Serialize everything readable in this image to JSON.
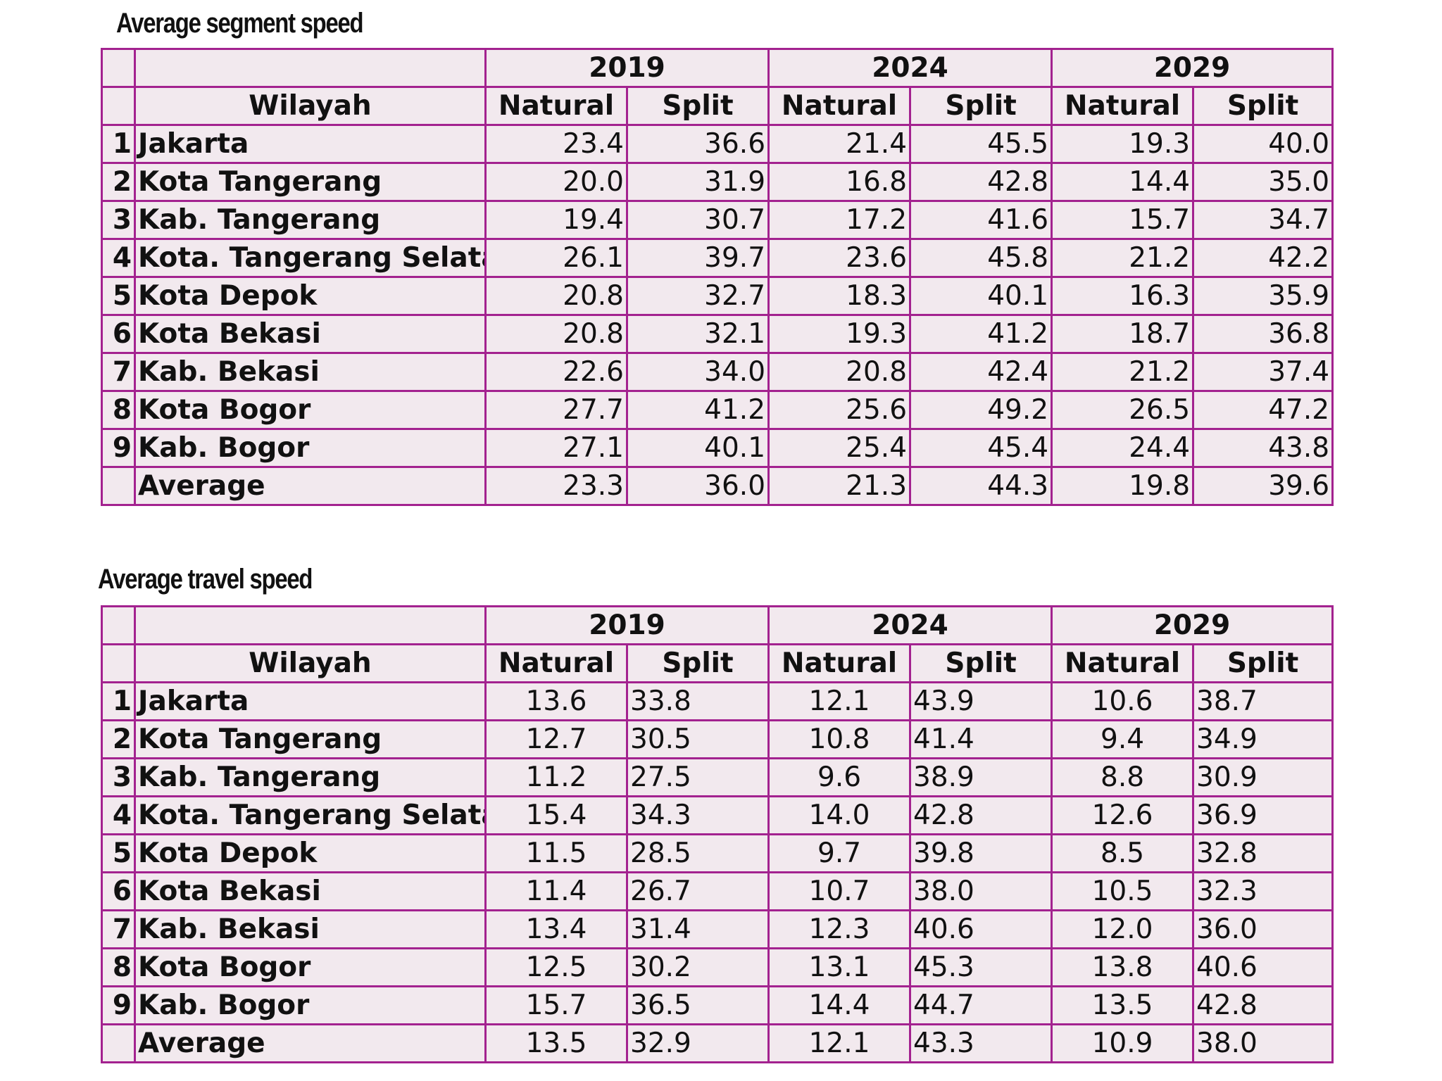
{
  "tables": [
    {
      "title": "Average segment speed",
      "years": [
        "2019",
        "2024",
        "2029"
      ],
      "region_header": "Wilayah",
      "sub_headers": [
        "Natural",
        "Split",
        "Natural",
        "Split",
        "Natural",
        "Split"
      ],
      "rows": [
        {
          "num": "1",
          "name": "Jakarta",
          "values": [
            "23.4",
            "36.6",
            "21.4",
            "45.5",
            "19.3",
            "40.0"
          ]
        },
        {
          "num": "2",
          "name": "Kota Tangerang",
          "values": [
            "20.0",
            "31.9",
            "16.8",
            "42.8",
            "14.4",
            "35.0"
          ]
        },
        {
          "num": "3",
          "name": "Kab. Tangerang",
          "values": [
            "19.4",
            "30.7",
            "17.2",
            "41.6",
            "15.7",
            "34.7"
          ]
        },
        {
          "num": "4",
          "name": "Kota. Tangerang Selatan",
          "values": [
            "26.1",
            "39.7",
            "23.6",
            "45.8",
            "21.2",
            "42.2"
          ]
        },
        {
          "num": "5",
          "name": "Kota Depok",
          "values": [
            "20.8",
            "32.7",
            "18.3",
            "40.1",
            "16.3",
            "35.9"
          ]
        },
        {
          "num": "6",
          "name": "Kota Bekasi",
          "values": [
            "20.8",
            "32.1",
            "19.3",
            "41.2",
            "18.7",
            "36.8"
          ]
        },
        {
          "num": "7",
          "name": "Kab. Bekasi",
          "values": [
            "22.6",
            "34.0",
            "20.8",
            "42.4",
            "21.2",
            "37.4"
          ]
        },
        {
          "num": "8",
          "name": "Kota Bogor",
          "values": [
            "27.7",
            "41.2",
            "25.6",
            "49.2",
            "26.5",
            "47.2"
          ]
        },
        {
          "num": "9",
          "name": "Kab. Bogor",
          "values": [
            "27.1",
            "40.1",
            "25.4",
            "45.4",
            "24.4",
            "43.8"
          ]
        },
        {
          "num": "",
          "name": "Average",
          "values": [
            "23.3",
            "36.0",
            "21.3",
            "44.3",
            "19.8",
            "39.6"
          ]
        }
      ]
    },
    {
      "title": "Average travel speed",
      "years": [
        "2019",
        "2024",
        "2029"
      ],
      "region_header": "Wilayah",
      "sub_headers": [
        "Natural",
        "Split",
        "Natural",
        "Split",
        "Natural",
        "Split"
      ],
      "rows": [
        {
          "num": "1",
          "name": "Jakarta",
          "values": [
            "13.6",
            "33.8",
            "12.1",
            "43.9",
            "10.6",
            "38.7"
          ]
        },
        {
          "num": "2",
          "name": "Kota Tangerang",
          "values": [
            "12.7",
            "30.5",
            "10.8",
            "41.4",
            "9.4",
            "34.9"
          ]
        },
        {
          "num": "3",
          "name": "Kab. Tangerang",
          "values": [
            "11.2",
            "27.5",
            "9.6",
            "38.9",
            "8.8",
            "30.9"
          ]
        },
        {
          "num": "4",
          "name": "Kota. Tangerang Selatan",
          "values": [
            "15.4",
            "34.3",
            "14.0",
            "42.8",
            "12.6",
            "36.9"
          ]
        },
        {
          "num": "5",
          "name": "Kota Depok",
          "values": [
            "11.5",
            "28.5",
            "9.7",
            "39.8",
            "8.5",
            "32.8"
          ]
        },
        {
          "num": "6",
          "name": "Kota Bekasi",
          "values": [
            "11.4",
            "26.7",
            "10.7",
            "38.0",
            "10.5",
            "32.3"
          ]
        },
        {
          "num": "7",
          "name": "Kab. Bekasi",
          "values": [
            "13.4",
            "31.4",
            "12.3",
            "40.6",
            "12.0",
            "36.0"
          ]
        },
        {
          "num": "8",
          "name": "Kota Bogor",
          "values": [
            "12.5",
            "30.2",
            "13.1",
            "45.3",
            "13.8",
            "40.6"
          ]
        },
        {
          "num": "9",
          "name": "Kab. Bogor",
          "values": [
            "15.7",
            "36.5",
            "14.4",
            "44.7",
            "13.5",
            "42.8"
          ]
        },
        {
          "num": "",
          "name": "Average",
          "values": [
            "13.5",
            "32.9",
            "12.1",
            "43.3",
            "10.9",
            "38.0"
          ]
        }
      ]
    }
  ],
  "colors": {
    "border": "#a3228f",
    "cell_background": "#f2e9ee",
    "text": "#111111"
  },
  "chart_data": [
    {
      "type": "table",
      "title": "Average segment speed",
      "columns": [
        "Wilayah",
        "2019 Natural",
        "2019 Split",
        "2024 Natural",
        "2024 Split",
        "2029 Natural",
        "2029 Split"
      ],
      "rows": [
        [
          "Jakarta",
          23.4,
          36.6,
          21.4,
          45.5,
          19.3,
          40.0
        ],
        [
          "Kota Tangerang",
          20.0,
          31.9,
          16.8,
          42.8,
          14.4,
          35.0
        ],
        [
          "Kab. Tangerang",
          19.4,
          30.7,
          17.2,
          41.6,
          15.7,
          34.7
        ],
        [
          "Kota. Tangerang Selatan",
          26.1,
          39.7,
          23.6,
          45.8,
          21.2,
          42.2
        ],
        [
          "Kota Depok",
          20.8,
          32.7,
          18.3,
          40.1,
          16.3,
          35.9
        ],
        [
          "Kota Bekasi",
          20.8,
          32.1,
          19.3,
          41.2,
          18.7,
          36.8
        ],
        [
          "Kab. Bekasi",
          22.6,
          34.0,
          20.8,
          42.4,
          21.2,
          37.4
        ],
        [
          "Kota Bogor",
          27.7,
          41.2,
          25.6,
          49.2,
          26.5,
          47.2
        ],
        [
          "Kab. Bogor",
          27.1,
          40.1,
          25.4,
          45.4,
          24.4,
          43.8
        ],
        [
          "Average",
          23.3,
          36.0,
          21.3,
          44.3,
          19.8,
          39.6
        ]
      ]
    },
    {
      "type": "table",
      "title": "Average travel speed",
      "columns": [
        "Wilayah",
        "2019 Natural",
        "2019 Split",
        "2024 Natural",
        "2024 Split",
        "2029 Natural",
        "2029 Split"
      ],
      "rows": [
        [
          "Jakarta",
          13.6,
          33.8,
          12.1,
          43.9,
          10.6,
          38.7
        ],
        [
          "Kota Tangerang",
          12.7,
          30.5,
          10.8,
          41.4,
          9.4,
          34.9
        ],
        [
          "Kab. Tangerang",
          11.2,
          27.5,
          9.6,
          38.9,
          8.8,
          30.9
        ],
        [
          "Kota. Tangerang Selatan",
          15.4,
          34.3,
          14.0,
          42.8,
          12.6,
          36.9
        ],
        [
          "Kota Depok",
          11.5,
          28.5,
          9.7,
          39.8,
          8.5,
          32.8
        ],
        [
          "Kota Bekasi",
          11.4,
          26.7,
          10.7,
          38.0,
          10.5,
          32.3
        ],
        [
          "Kab. Bekasi",
          13.4,
          31.4,
          12.3,
          40.6,
          12.0,
          36.0
        ],
        [
          "Kota Bogor",
          12.5,
          30.2,
          13.1,
          45.3,
          13.8,
          40.6
        ],
        [
          "Kab. Bogor",
          15.7,
          36.5,
          14.4,
          44.7,
          13.5,
          42.8
        ],
        [
          "Average",
          13.5,
          32.9,
          12.1,
          43.3,
          10.9,
          38.0
        ]
      ]
    }
  ]
}
